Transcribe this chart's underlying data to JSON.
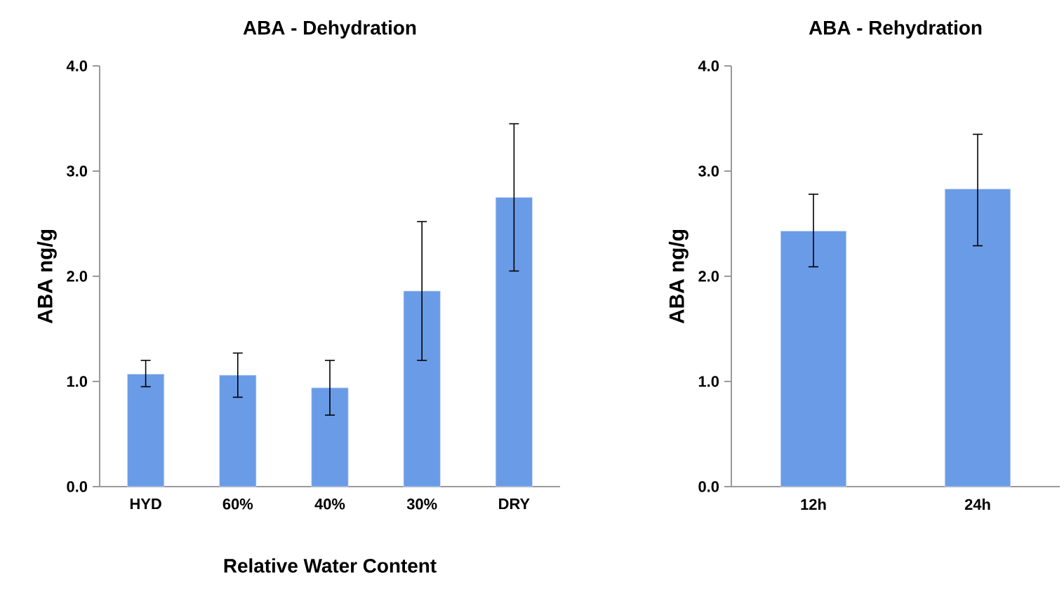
{
  "chart_data": [
    {
      "type": "bar",
      "title": "ABA - Dehydration",
      "xlabel": "Relative Water Content",
      "ylabel": "ABA ng/g",
      "categories": [
        "HYD",
        "60%",
        "40%",
        "30%",
        "DRY"
      ],
      "values": [
        1.07,
        1.06,
        0.94,
        1.86,
        2.75
      ],
      "errors": [
        [
          0.95,
          1.2
        ],
        [
          0.85,
          1.27
        ],
        [
          0.68,
          1.2
        ],
        [
          1.2,
          2.52
        ],
        [
          2.05,
          3.45
        ]
      ],
      "color": "#6a9be6",
      "ylim": [
        0,
        4
      ],
      "yticks": [
        {
          "value": 0,
          "label": "0.0"
        },
        {
          "value": 1,
          "label": "1.0"
        },
        {
          "value": 2,
          "label": "2.0"
        },
        {
          "value": 3,
          "label": "3.0"
        },
        {
          "value": 4,
          "label": "4.0"
        }
      ]
    },
    {
      "type": "bar",
      "title": "ABA - Rehydration",
      "ylabel": "ABA ng/g",
      "categories": [
        "12h",
        "24h"
      ],
      "values": [
        2.43,
        2.83
      ],
      "errors": [
        [
          2.09,
          2.78
        ],
        [
          2.29,
          3.35
        ]
      ],
      "color": "#6a9be6",
      "ylim": [
        0,
        4
      ],
      "yticks": [
        {
          "value": 0,
          "label": "0.0"
        },
        {
          "value": 1,
          "label": "1.0"
        },
        {
          "value": 2,
          "label": "2.0"
        },
        {
          "value": 3,
          "label": "3.0"
        },
        {
          "value": 4,
          "label": "4.0"
        }
      ]
    }
  ]
}
